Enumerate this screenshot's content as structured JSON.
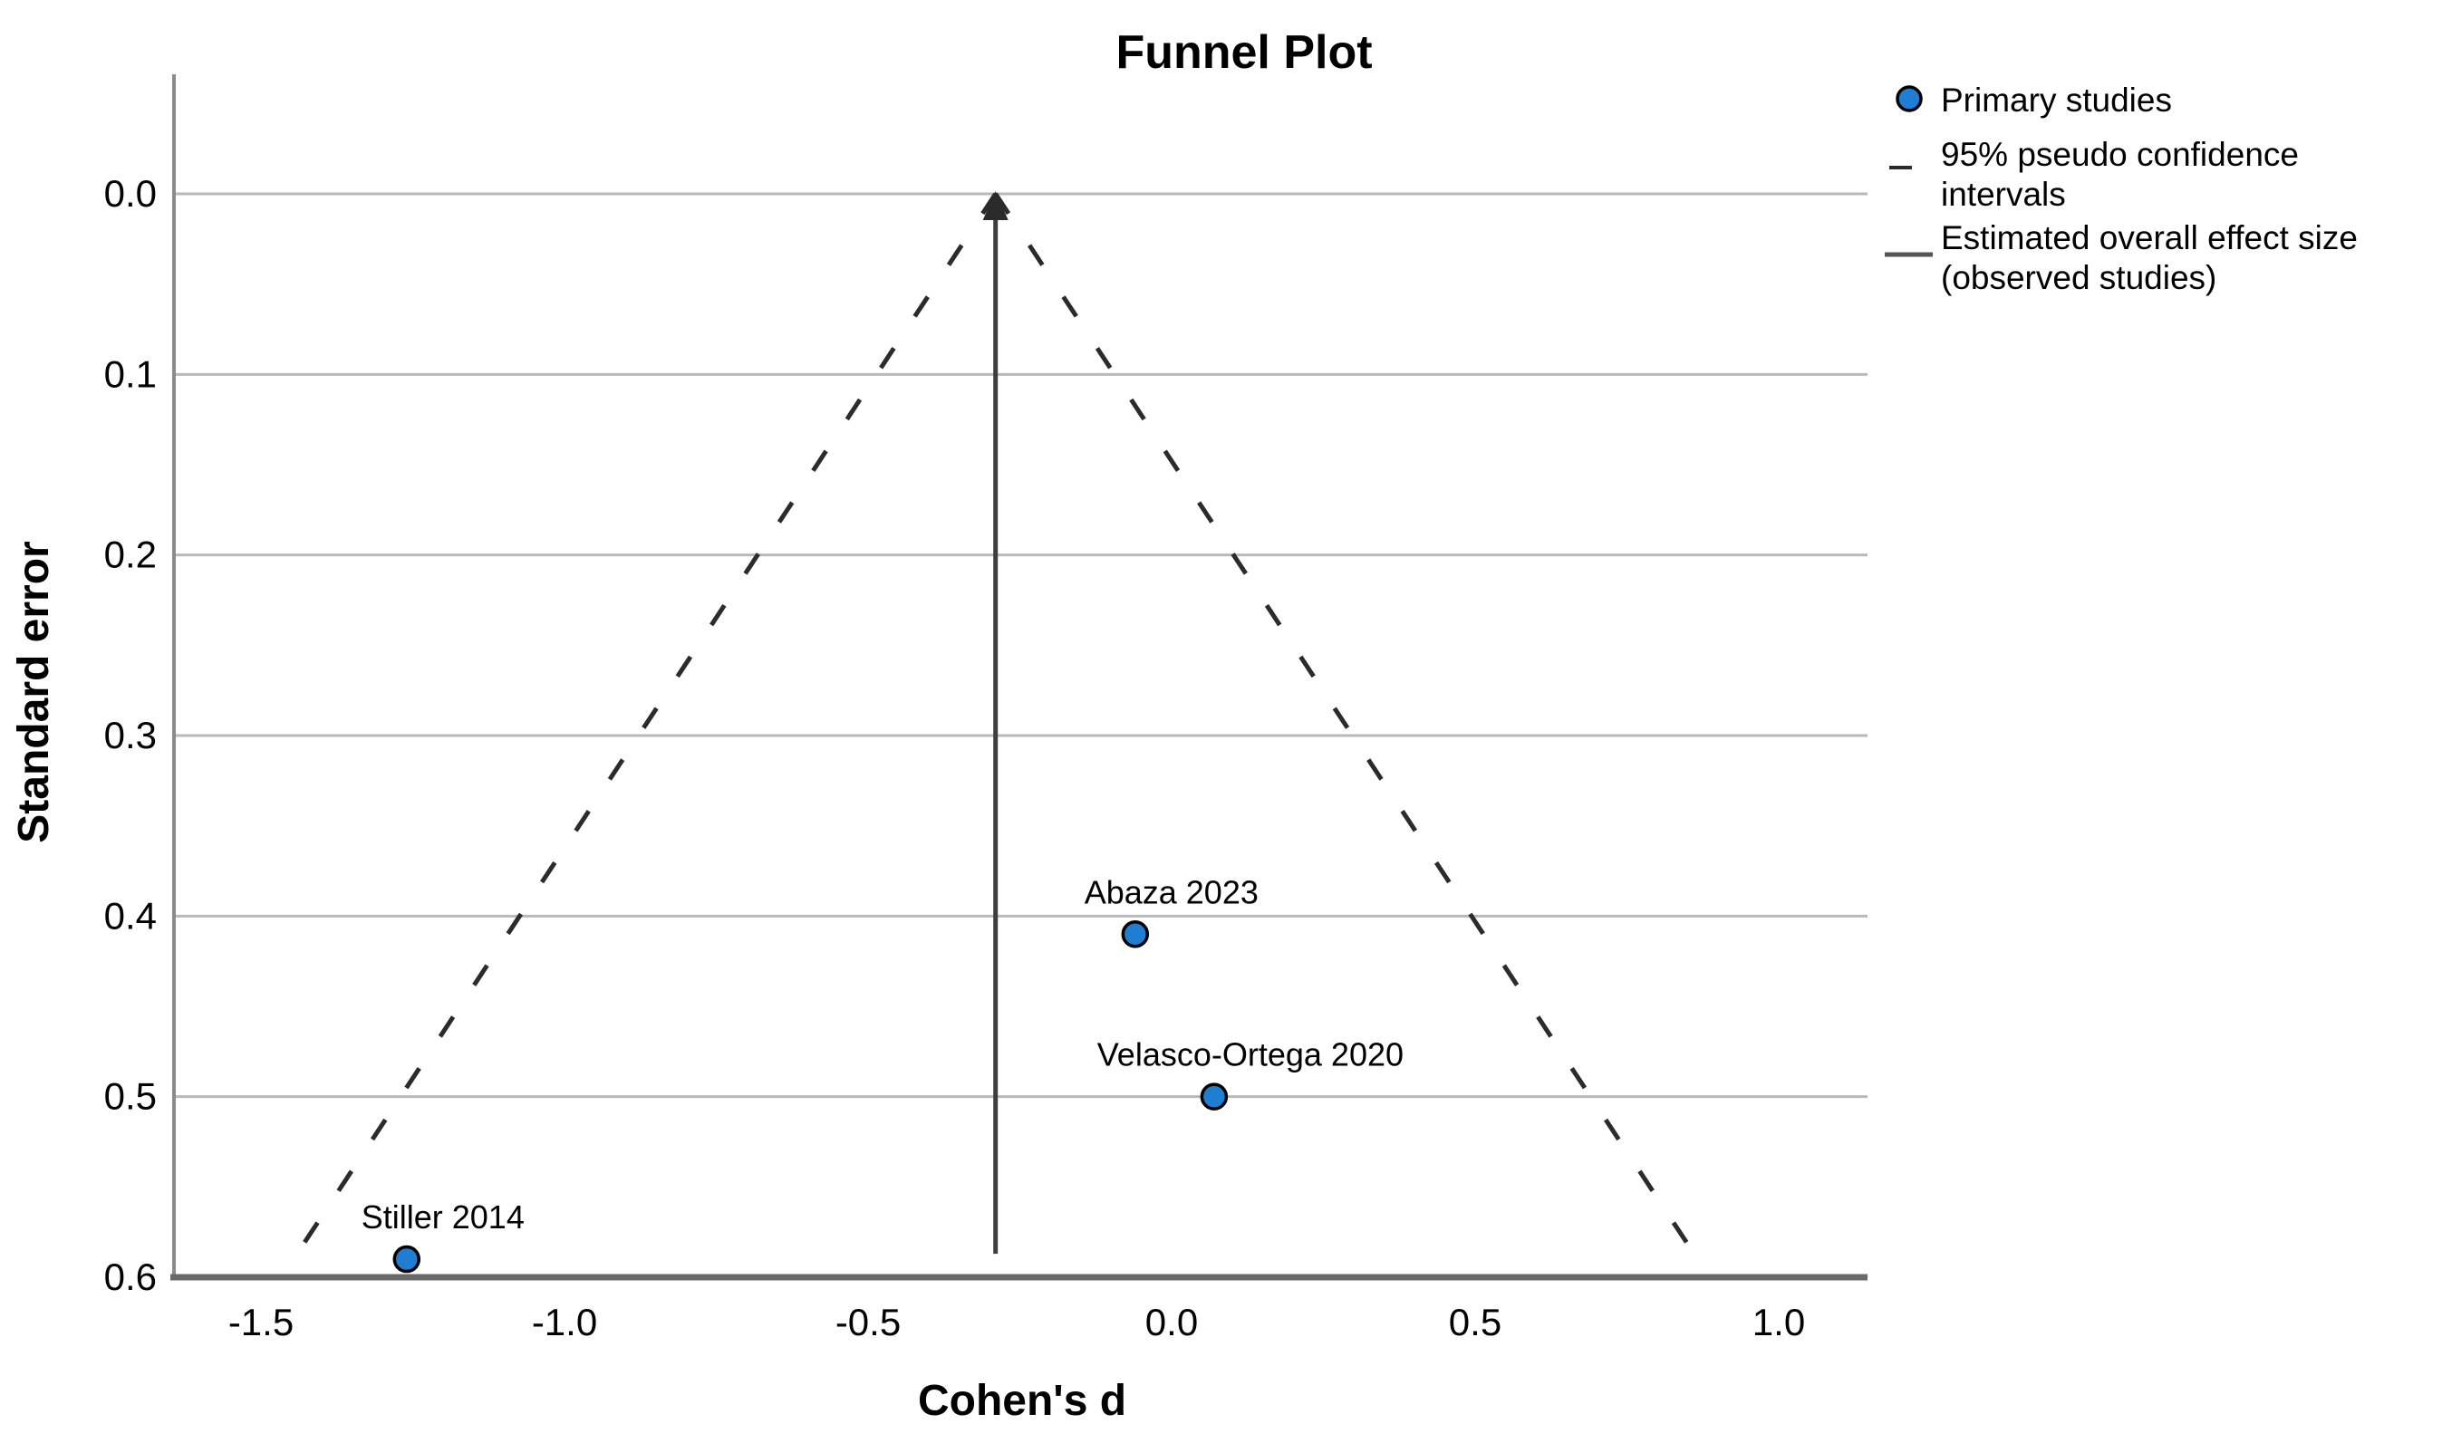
{
  "title": "Funnel Plot",
  "axes": {
    "x": {
      "label": "Cohen's d",
      "tick_values": [
        -1.5,
        -1.0,
        -0.5,
        0.0,
        0.5,
        1.0
      ],
      "tick_labels": [
        "-1.5",
        "-1.0",
        "-0.5",
        "0.0",
        "0.5",
        "1.0"
      ],
      "min": -1.64,
      "max": 1.15
    },
    "y": {
      "label": "Standard error",
      "tick_values": [
        0.0,
        0.1,
        0.2,
        0.3,
        0.4,
        0.5,
        0.6
      ],
      "tick_labels": [
        "0.0",
        "0.1",
        "0.2",
        "0.3",
        "0.4",
        "0.5",
        "0.6"
      ],
      "min": 0.0,
      "max": 0.6,
      "inverted": true
    }
  },
  "legend": {
    "items": [
      {
        "symbol": "circle-marker",
        "lines": [
          "Primary studies"
        ]
      },
      {
        "symbol": "dashed-line",
        "lines": [
          "95% pseudo confidence",
          "intervals"
        ]
      },
      {
        "symbol": "solid-line",
        "lines": [
          "Estimated overall effect size",
          "(observed studies)"
        ]
      }
    ]
  },
  "chart_data": {
    "type": "scatter",
    "title": "Funnel Plot",
    "xlabel": "Cohen's d",
    "ylabel": "Standard error",
    "xlim": [
      -1.64,
      1.15
    ],
    "ylim": [
      0.6,
      0.0
    ],
    "grid": "horizontal",
    "legend_position": "top-right",
    "studies": [
      {
        "label": "Stiller 2014",
        "cohens_d": -1.26,
        "standard_error": 0.59
      },
      {
        "label": "Abaza 2023",
        "cohens_d": -0.06,
        "standard_error": 0.41
      },
      {
        "label": "Velasco-Ortega 2020",
        "cohens_d": 0.07,
        "standard_error": 0.5
      }
    ],
    "estimated_overall_effect_d": -0.29,
    "pseudo_ci": {
      "z": 1.96,
      "se_from": 0.0,
      "se_to": 0.593
    },
    "overall_line_se_extent": 0.587
  },
  "colors": {
    "marker_fill": "#1f7ed1",
    "marker_stroke": "#000000",
    "gridline": "#b9b9b9",
    "axis_left": "#8c8c8c",
    "axis_bottom": "#696969",
    "overall_line": "#3d3d3d",
    "funnel_dash": "#2b2b2b",
    "text": "#000000"
  }
}
